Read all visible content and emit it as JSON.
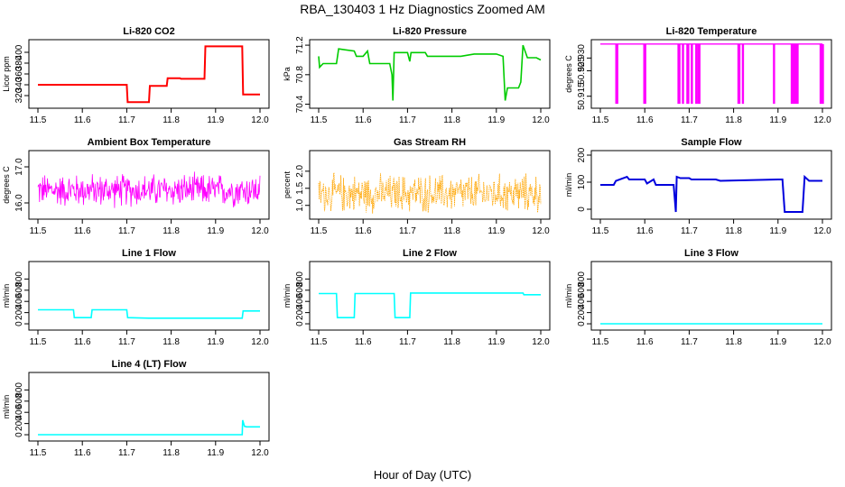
{
  "figure": {
    "title": "RBA_130403  1 Hz Diagnostics Zoomed AM",
    "xlabel": "Hour of Day (UTC)"
  },
  "chart_data": [
    {
      "id": "co2",
      "type": "line",
      "title": "Li-820 CO2",
      "ylabel": "Licor ppm",
      "color": "#ff0000",
      "xlim": [
        11.5,
        12.0
      ],
      "ylim": [
        300,
        420
      ],
      "xticks": [
        "11.5",
        "11.6",
        "11.7",
        "11.8",
        "11.9",
        "12.0"
      ],
      "yticks": [
        "320",
        "340",
        "360",
        "380",
        "400"
      ],
      "x": [
        11.5,
        11.7,
        11.702,
        11.75,
        11.752,
        11.79,
        11.792,
        11.82,
        11.822,
        11.875,
        11.877,
        11.96,
        11.962,
        12.0
      ],
      "y": [
        340,
        340,
        308,
        308,
        338,
        338,
        352,
        352,
        351,
        351,
        411,
        411,
        322,
        322
      ]
    },
    {
      "id": "pressure",
      "type": "line",
      "title": "Li-820 Pressure",
      "ylabel": "kPa",
      "color": "#00cc00",
      "xlim": [
        11.5,
        12.0
      ],
      "ylim": [
        70.37,
        71.25
      ],
      "xticks": [
        "11.5",
        "11.6",
        "11.7",
        "11.8",
        "11.9",
        "12.0"
      ],
      "yticks": [
        "70.4",
        "70.8",
        "71.2"
      ],
      "x": [
        11.5,
        11.502,
        11.51,
        11.54,
        11.545,
        11.58,
        11.585,
        11.6,
        11.61,
        11.615,
        11.66,
        11.665,
        11.667,
        11.67,
        11.7,
        11.705,
        11.708,
        11.74,
        11.745,
        11.8,
        11.82,
        11.85,
        11.9,
        11.915,
        11.92,
        11.925,
        11.95,
        11.955,
        11.96,
        11.97,
        11.99,
        12.0
      ],
      "y": [
        71.05,
        70.9,
        70.95,
        70.95,
        71.15,
        71.12,
        71.05,
        71.05,
        71.12,
        70.95,
        70.95,
        70.8,
        70.45,
        71.1,
        71.1,
        70.98,
        71.1,
        71.1,
        71.05,
        71.05,
        71.05,
        71.08,
        71.08,
        71.05,
        70.45,
        70.62,
        70.62,
        70.7,
        71.2,
        71.03,
        71.03,
        71.0
      ]
    },
    {
      "id": "temp",
      "type": "line",
      "title": "Li-820 Temperature",
      "ylabel": "degrees C",
      "color": "#ff00ff",
      "xlim": [
        11.5,
        12.0
      ],
      "ylim": [
        50.911,
        50.9365
      ],
      "xticks": [
        "11.5",
        "11.6",
        "11.7",
        "11.8",
        "11.9",
        "12.0"
      ],
      "yticks": [
        "50.915",
        "50.925",
        "50.930"
      ],
      "baseline": 50.9355,
      "dips": [
        11.535,
        11.537,
        11.598,
        11.6,
        11.675,
        11.677,
        11.685,
        11.695,
        11.697,
        11.705,
        11.715,
        11.72,
        11.722,
        11.81,
        11.812,
        11.82,
        11.89,
        11.93,
        11.932,
        11.936,
        11.94,
        11.943,
        11.995,
        11.997,
        12.0
      ],
      "dip_value": 50.912
    },
    {
      "id": "ambient",
      "type": "line",
      "title": "Ambient Box Temperature",
      "ylabel": "degrees C",
      "color": "#ff00ff",
      "xlim": [
        11.5,
        12.0
      ],
      "ylim": [
        15.6,
        17.4
      ],
      "xticks": [
        "11.5",
        "11.6",
        "11.7",
        "11.8",
        "11.9",
        "12.0"
      ],
      "yticks": [
        "16.0",
        "17.0"
      ],
      "center": 16.35,
      "spread": 0.45
    },
    {
      "id": "rh",
      "type": "line",
      "title": "Gas Stream RH",
      "ylabel": "percent",
      "color": "#ffa500",
      "xlim": [
        11.5,
        12.0
      ],
      "ylim": [
        0.65,
        2.55
      ],
      "xticks": [
        "11.5",
        "11.6",
        "11.7",
        "11.8",
        "11.9",
        "12.0"
      ],
      "yticks": [
        "1.0",
        "1.5",
        "2.0"
      ],
      "center": 1.35,
      "spread": 0.55
    },
    {
      "id": "sample",
      "type": "line",
      "title": "Sample Flow",
      "ylabel": "ml/min",
      "color": "#0000dd",
      "xlim": [
        11.5,
        12.0
      ],
      "ylim": [
        -30,
        210
      ],
      "xticks": [
        "11.5",
        "11.6",
        "11.7",
        "11.8",
        "11.9",
        "12.0"
      ],
      "yticks": [
        "0",
        "100",
        "200"
      ],
      "x": [
        11.5,
        11.53,
        11.535,
        11.56,
        11.565,
        11.6,
        11.605,
        11.62,
        11.625,
        11.665,
        11.67,
        11.672,
        11.68,
        11.7,
        11.705,
        11.76,
        11.77,
        11.9,
        11.91,
        11.915,
        11.955,
        11.96,
        11.97,
        12.0
      ],
      "y": [
        90,
        90,
        105,
        120,
        110,
        110,
        95,
        110,
        90,
        90,
        -10,
        120,
        115,
        115,
        110,
        110,
        105,
        110,
        110,
        -10,
        -10,
        120,
        105,
        105
      ]
    },
    {
      "id": "line1",
      "type": "line",
      "title": "Line 1 Flow",
      "ylabel": "ml/min",
      "color": "#00ffff",
      "xlim": [
        11.5,
        12.0
      ],
      "ylim": [
        -80,
        1080
      ],
      "xticks": [
        "11.5",
        "11.6",
        "11.7",
        "11.8",
        "11.9",
        "12.0"
      ],
      "yticks": [
        "0",
        "200",
        "400",
        "600",
        "800"
      ],
      "x": [
        11.5,
        11.58,
        11.582,
        11.62,
        11.622,
        11.7,
        11.702,
        11.75,
        11.96,
        11.962,
        12.0
      ],
      "y": [
        250,
        250,
        110,
        110,
        250,
        250,
        110,
        100,
        100,
        230,
        230
      ]
    },
    {
      "id": "line2",
      "type": "line",
      "title": "Line 2 Flow",
      "ylabel": "ml/min",
      "color": "#00ffff",
      "xlim": [
        11.5,
        12.0
      ],
      "ylim": [
        -80,
        1080
      ],
      "xticks": [
        "11.5",
        "11.6",
        "11.7",
        "11.8",
        "11.9",
        "12.0"
      ],
      "yticks": [
        "0",
        "200",
        "400",
        "600",
        "800"
      ],
      "x": [
        11.5,
        11.54,
        11.542,
        11.58,
        11.582,
        11.67,
        11.672,
        11.705,
        11.707,
        11.96,
        11.962,
        12.0
      ],
      "y": [
        540,
        540,
        110,
        110,
        540,
        540,
        110,
        110,
        550,
        550,
        520,
        520
      ]
    },
    {
      "id": "line3",
      "type": "line",
      "title": "Line 3 Flow",
      "ylabel": "ml/min",
      "color": "#00ffff",
      "xlim": [
        11.5,
        12.0
      ],
      "ylim": [
        -80,
        1080
      ],
      "xticks": [
        "11.5",
        "11.6",
        "11.7",
        "11.8",
        "11.9",
        "12.0"
      ],
      "yticks": [
        "0",
        "200",
        "400",
        "600",
        "800"
      ],
      "x": [
        11.5,
        12.0
      ],
      "y": [
        0,
        0
      ]
    },
    {
      "id": "line4",
      "type": "line",
      "title": "Line 4 (LT) Flow",
      "ylabel": "ml/min",
      "color": "#00ffff",
      "xlim": [
        11.5,
        12.0
      ],
      "ylim": [
        -80,
        1080
      ],
      "xticks": [
        "11.5",
        "11.6",
        "11.7",
        "11.8",
        "11.9",
        "12.0"
      ],
      "yticks": [
        "0",
        "200",
        "400",
        "600",
        "800"
      ],
      "x": [
        11.5,
        11.96,
        11.961,
        11.965,
        11.97,
        12.0
      ],
      "y": [
        0,
        0,
        260,
        150,
        140,
        140
      ]
    }
  ]
}
